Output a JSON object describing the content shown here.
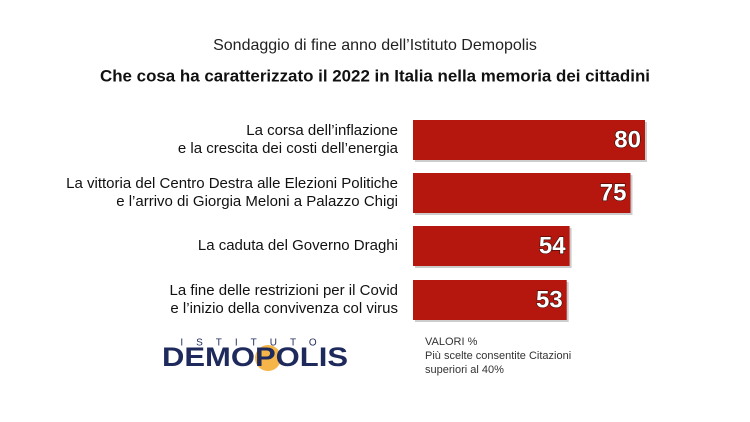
{
  "chart_data": {
    "type": "bar",
    "subtitle": "Sondaggio di fine anno dell’Istituto Demopolis",
    "title": "Che cosa ha caratterizzato il 2022 in Italia nella memoria dei cittadini",
    "categories": [
      [
        "La corsa dell’inflazione",
        "e la crescita dei costi dell’energia"
      ],
      [
        "La vittoria del Centro Destra alle Elezioni Politiche",
        "e l’arrivo di Giorgia Meloni a Palazzo Chigi"
      ],
      [
        "La caduta del Governo Draghi"
      ],
      [
        "La fine delle restrizioni per il Covid",
        "e l’inizio della convivenza col virus"
      ]
    ],
    "values": [
      80,
      75,
      54,
      53
    ],
    "color": "#b5170f",
    "xlim": [
      0,
      80
    ],
    "note": [
      "VALORI %",
      "Più scelte consentite Citazioni",
      "superiori al 40%"
    ],
    "logo": {
      "top": "ISTITUTO",
      "name": "DEMOPOLIS"
    }
  }
}
